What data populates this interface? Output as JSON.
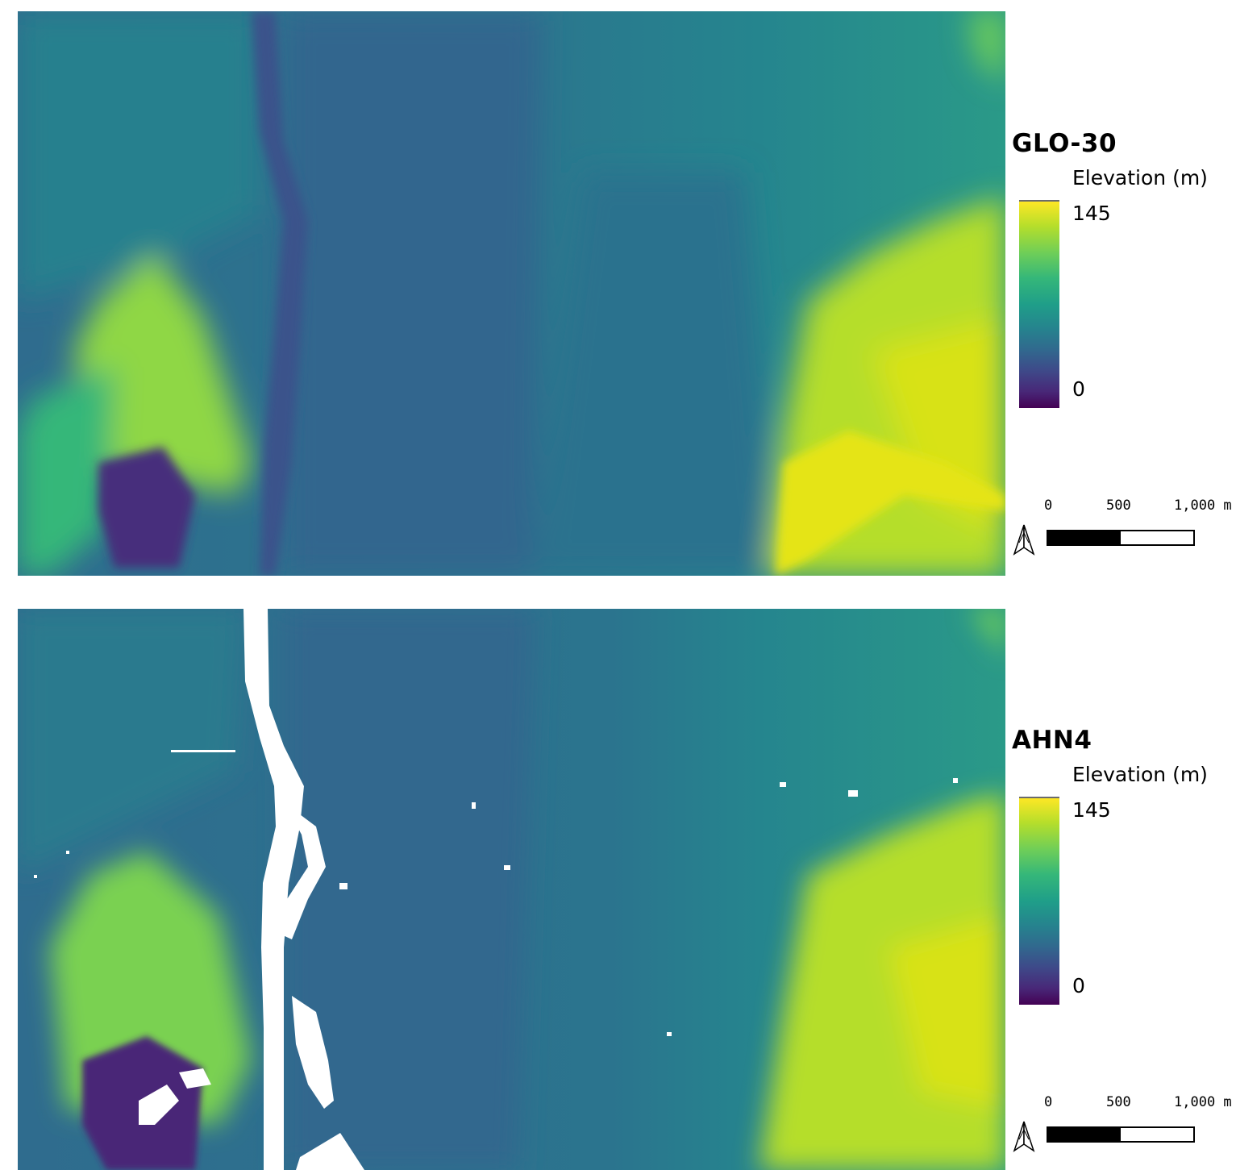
{
  "maps": [
    {
      "title": "GLO-30",
      "legend": {
        "unit": "Elevation (m)",
        "max_label": "145",
        "min_label": "0",
        "colormap": "viridis"
      },
      "scalebar": {
        "labels": [
          "0",
          "500",
          "1,000 m"
        ]
      },
      "north_arrow_icon": "north-arrow-icon"
    },
    {
      "title": "AHN4",
      "legend": {
        "unit": "Elevation (m)",
        "max_label": "145",
        "min_label": "0",
        "colormap": "viridis"
      },
      "scalebar": {
        "labels": [
          "0",
          "500",
          "1,000 m"
        ]
      },
      "north_arrow_icon": "north-arrow-icon"
    }
  ],
  "colors": {
    "low": "#440154",
    "mid": "#21918c",
    "high": "#fde725",
    "nodata": "#ffffff"
  }
}
